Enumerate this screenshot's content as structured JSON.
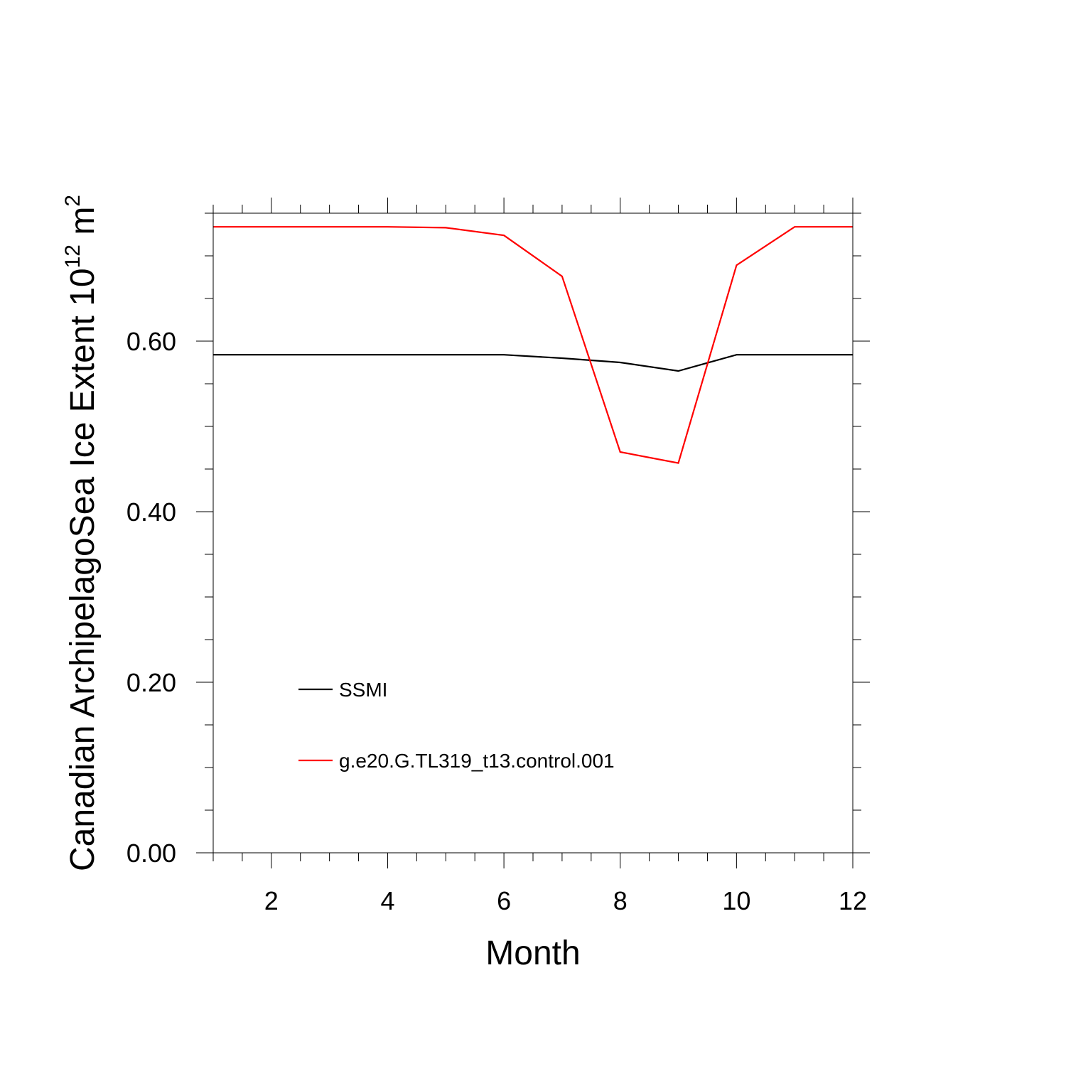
{
  "chart_data": {
    "type": "line",
    "xlabel": "Month",
    "ylabel": {
      "main": "Canadian ArchipelagoSea Ice Extent 10",
      "exponent": "12",
      "unit": " m",
      "unit_exponent": "2"
    },
    "xlim": [
      1,
      12
    ],
    "ylim": [
      0,
      0.75
    ],
    "x_ticks": [
      2,
      4,
      6,
      8,
      10,
      12
    ],
    "x_tick_labels": [
      "2",
      "4",
      "6",
      "8",
      "10",
      "12"
    ],
    "y_ticks": [
      0,
      0.2,
      0.4,
      0.6
    ],
    "y_tick_labels": [
      "0.00",
      "0.20",
      "0.40",
      "0.60"
    ],
    "x": [
      1,
      2,
      3,
      4,
      5,
      6,
      7,
      8,
      9,
      10,
      11,
      12
    ],
    "series": [
      {
        "name": "SSMI",
        "color": "#000000",
        "values": [
          0.584,
          0.584,
          0.584,
          0.584,
          0.584,
          0.584,
          0.58,
          0.575,
          0.565,
          0.584,
          0.584,
          0.584
        ]
      },
      {
        "name": "g.e20.G.TL319_t13.control.001",
        "color": "#ff0000",
        "values": [
          0.734,
          0.734,
          0.734,
          0.734,
          0.733,
          0.724,
          0.676,
          0.47,
          0.457,
          0.689,
          0.734,
          0.734
        ]
      }
    ],
    "legend_position": "lower-left",
    "grid": false
  }
}
